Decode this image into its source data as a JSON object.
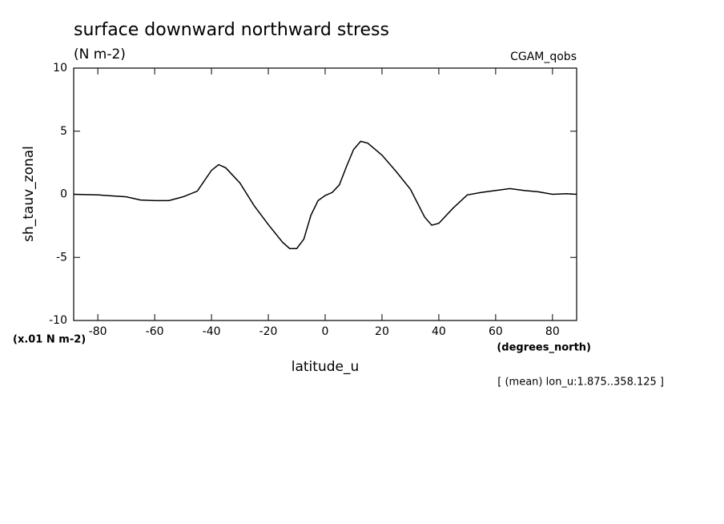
{
  "chart_data": {
    "type": "line",
    "title": "surface downward northward stress",
    "subtitle": "(N m-2)",
    "dataset": "CGAM_qobs",
    "y_label": "sh_tauv_zonal",
    "y_units": "(x.01 N m-2)",
    "x_label": "latitude_u",
    "x_units": "(degrees_north)",
    "annotation": "[ (mean) lon_u:1.875..358.125 ]",
    "x": [
      -88.5,
      -80,
      -70,
      -65,
      -60,
      -55,
      -50,
      -45,
      -40,
      -37.5,
      -35,
      -30,
      -25,
      -20,
      -15,
      -12.5,
      -10,
      -7.5,
      -5,
      -2.5,
      0,
      2.5,
      5,
      7.5,
      10,
      12.5,
      15,
      20,
      25,
      30,
      35,
      37.5,
      40,
      45,
      50,
      55,
      60,
      65,
      70,
      75,
      80,
      85,
      88.5
    ],
    "series": [
      {
        "color": "#000000",
        "values": [
          0,
          -0.05,
          -0.2,
          -0.45,
          -0.5,
          -0.5,
          -0.2,
          0.25,
          1.9,
          2.35,
          2.1,
          0.9,
          -0.9,
          -2.4,
          -3.8,
          -4.3,
          -4.3,
          -3.55,
          -1.65,
          -0.5,
          -0.1,
          0.15,
          0.75,
          2.2,
          3.55,
          4.2,
          4.05,
          3.1,
          1.8,
          0.4,
          -1.8,
          -2.45,
          -2.3,
          -1.1,
          -0.05,
          0.15,
          0.3,
          0.45,
          0.3,
          0.2,
          0,
          0.05,
          0
        ]
      }
    ],
    "xlim": [
      -88.5,
      88.5
    ],
    "xticks": [
      -80,
      -60,
      -40,
      -20,
      0,
      20,
      40,
      60,
      80
    ],
    "ylim": [
      -10,
      10
    ],
    "yticks": [
      -10,
      -5,
      0,
      5,
      10
    ],
    "grid": false
  }
}
